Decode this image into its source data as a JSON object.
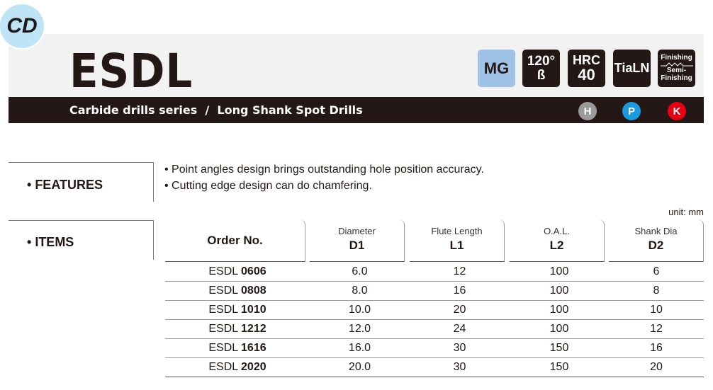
{
  "logo": "CD",
  "title": "ESDL",
  "subtitle": "Carbide drills series  /  Long Shank Spot Drills",
  "badges": {
    "mg": "MG",
    "angle": "120°",
    "angle_sym": "ß",
    "hrc": "HRC",
    "hrc_val": "40",
    "coating": "TiaLN",
    "finishing": "Finishing",
    "semi": "Semi-",
    "semi2": "Finishing"
  },
  "materials": [
    {
      "label": "H",
      "color": "#9a9a9a"
    },
    {
      "label": "P",
      "color": "#1a9be0"
    },
    {
      "label": "K",
      "color": "#e60012"
    }
  ],
  "features": {
    "label": "FEATURES",
    "bullets": [
      "Point angles design brings outstanding hole position accuracy.",
      "Cutting edge design can do chamfering."
    ]
  },
  "items": {
    "label": "ITEMS"
  },
  "unit": "unit: mm",
  "table": {
    "headers": [
      {
        "main": "Order No."
      },
      {
        "sub": "Diameter",
        "main": "D1"
      },
      {
        "sub": "Flute Length",
        "main": "L1"
      },
      {
        "sub": "O.A.L.",
        "main": "L2"
      },
      {
        "sub": "Shank Dia",
        "main": "D2"
      }
    ],
    "rows": [
      {
        "prefix": "ESDL",
        "code": "0606",
        "d1": "6.0",
        "l1": "12",
        "l2": "100",
        "d2": "6"
      },
      {
        "prefix": "ESDL",
        "code": "0808",
        "d1": "8.0",
        "l1": "16",
        "l2": "100",
        "d2": "8"
      },
      {
        "prefix": "ESDL",
        "code": "1010",
        "d1": "10.0",
        "l1": "20",
        "l2": "100",
        "d2": "10"
      },
      {
        "prefix": "ESDL",
        "code": "1212",
        "d1": "12.0",
        "l1": "24",
        "l2": "100",
        "d2": "12"
      },
      {
        "prefix": "ESDL",
        "code": "1616",
        "d1": "16.0",
        "l1": "30",
        "l2": "150",
        "d2": "16"
      },
      {
        "prefix": "ESDL",
        "code": "2020",
        "d1": "20.0",
        "l1": "30",
        "l2": "150",
        "d2": "20"
      }
    ]
  }
}
